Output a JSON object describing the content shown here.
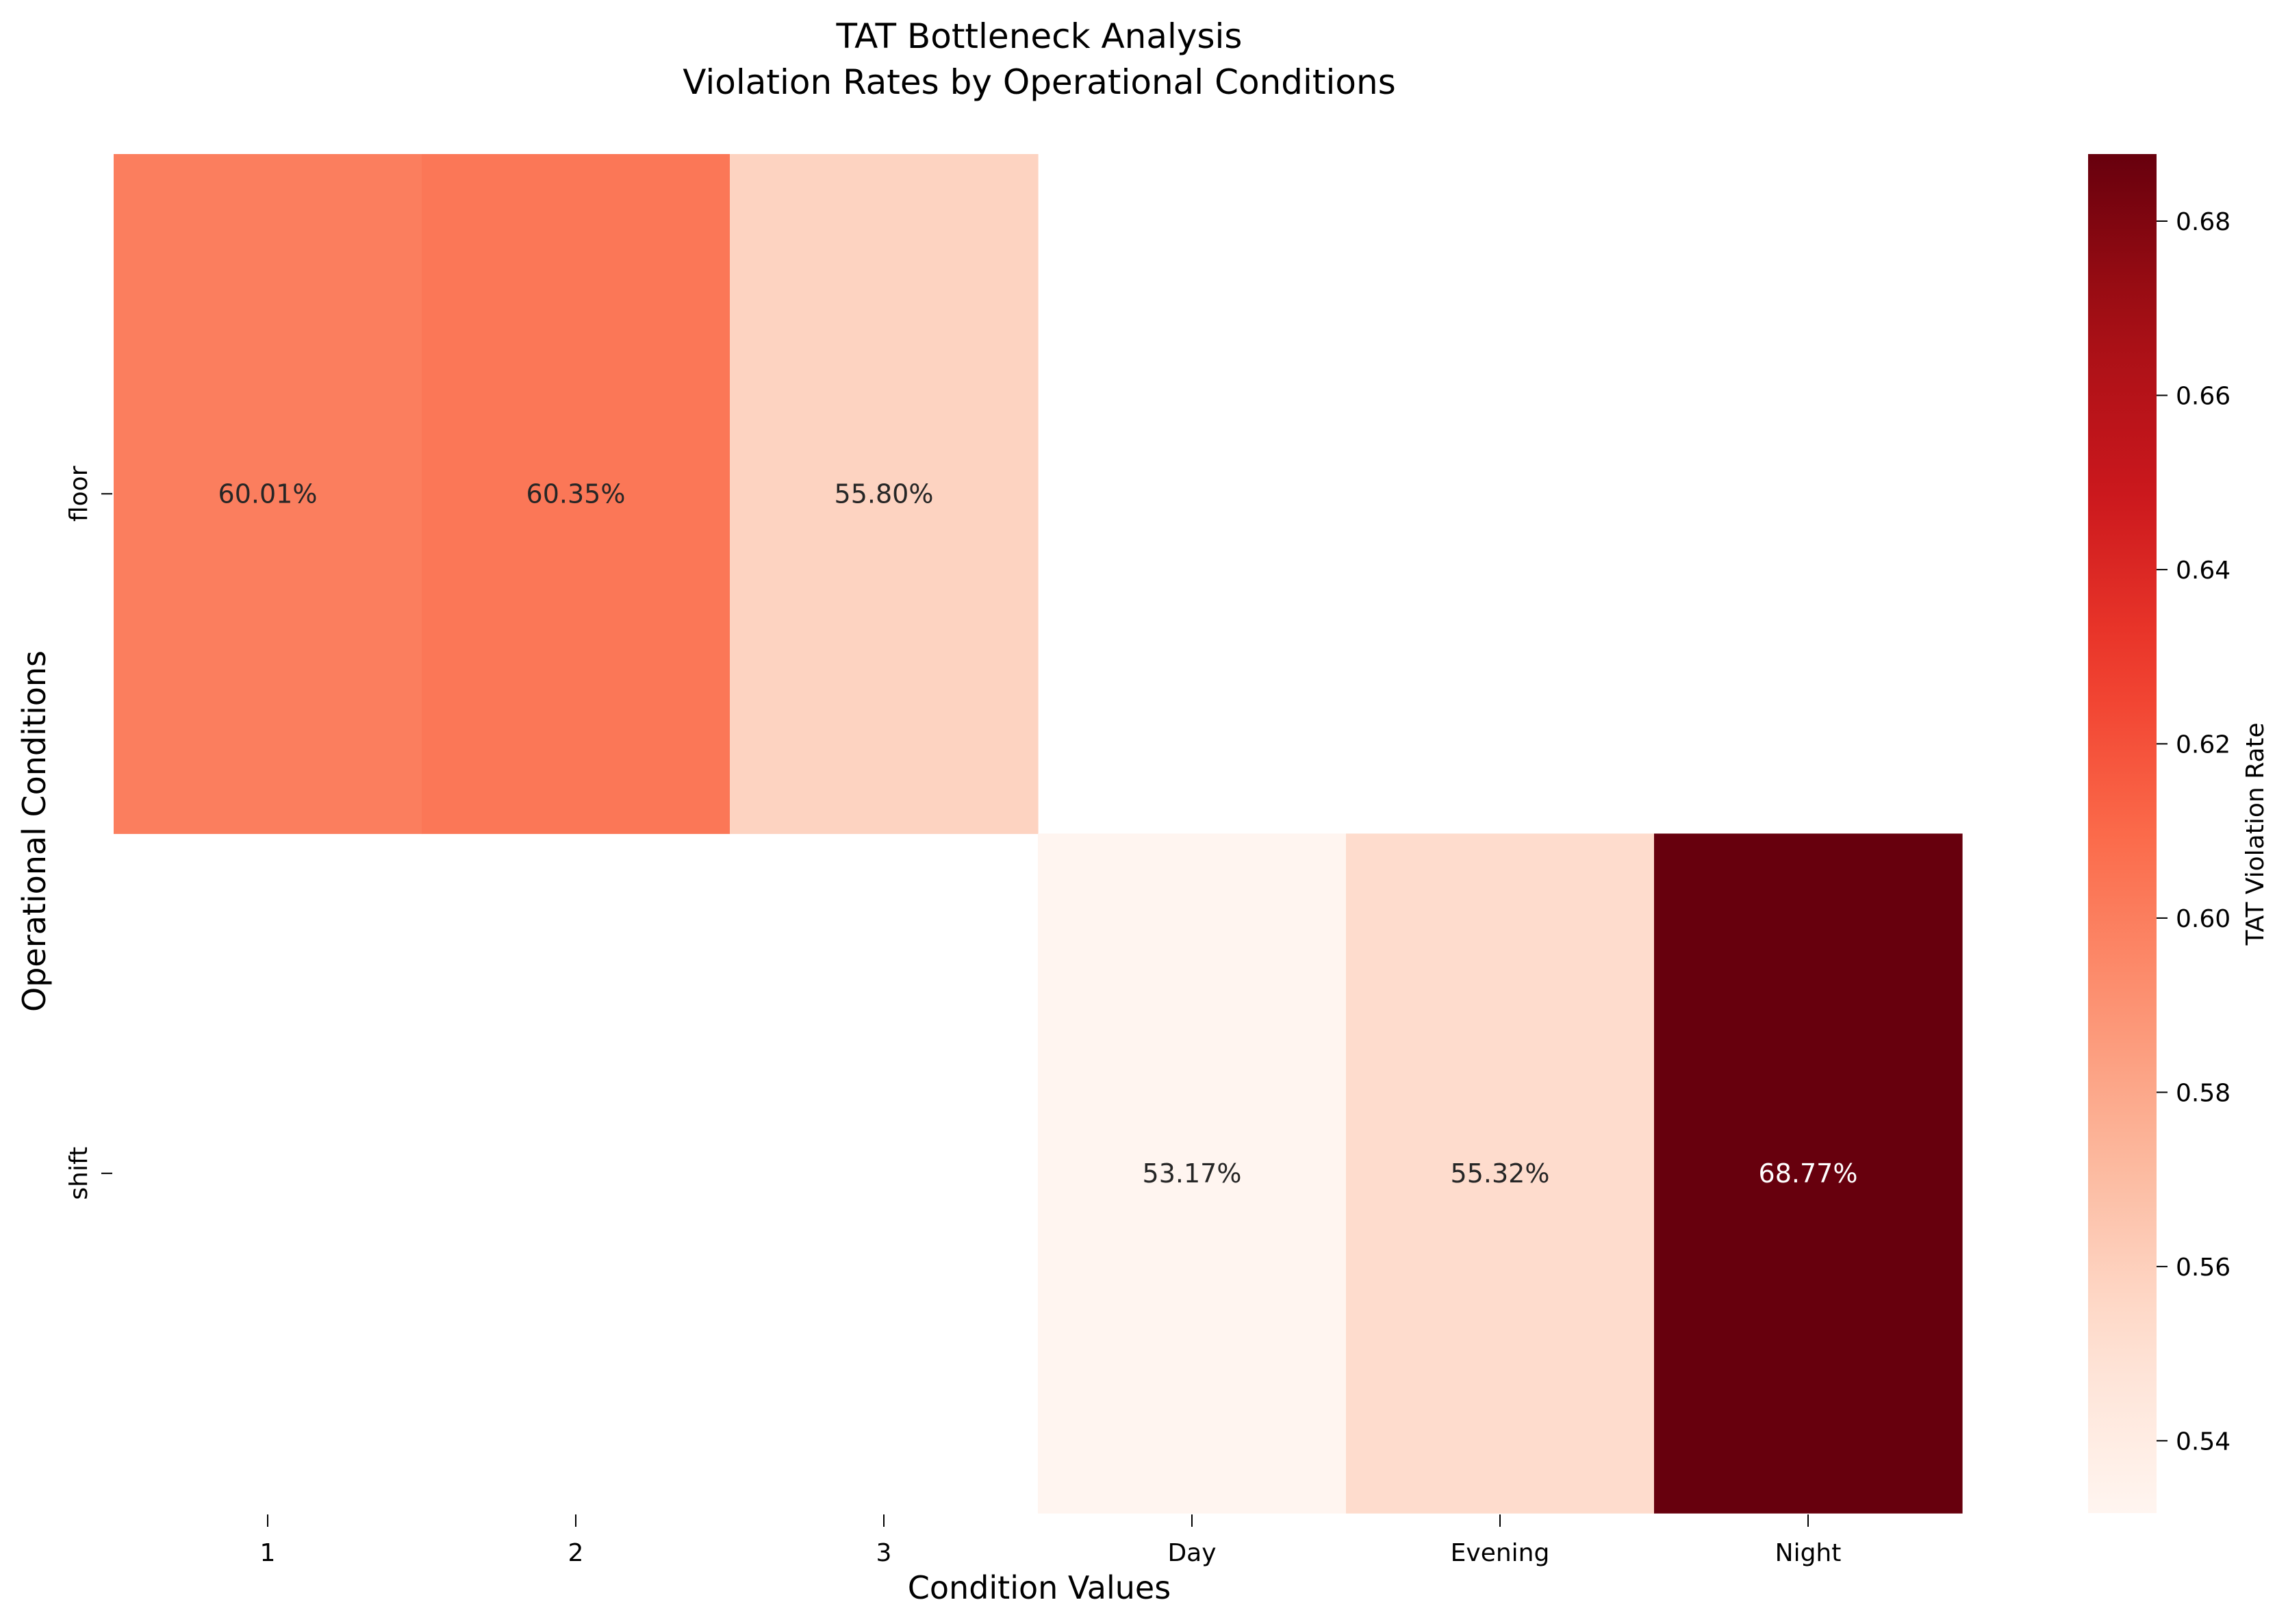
{
  "chart_data": {
    "type": "heatmap",
    "title": "TAT Bottleneck Analysis",
    "subtitle": "Violation Rates by Operational Conditions",
    "xlabel": "Condition Values",
    "ylabel": "Operational Conditions",
    "x_categories": [
      "1",
      "2",
      "3",
      "Day",
      "Evening",
      "Night"
    ],
    "y_categories": [
      "floor",
      "shift"
    ],
    "values": [
      [
        0.6001,
        0.6035,
        0.558,
        null,
        null,
        null
      ],
      [
        null,
        null,
        null,
        0.5317,
        0.5532,
        0.6877
      ]
    ],
    "cell_labels": [
      [
        "60.01%",
        "60.35%",
        "55.80%",
        "",
        "",
        ""
      ],
      [
        "",
        "",
        "",
        "53.17%",
        "55.32%",
        "68.77%"
      ]
    ],
    "colorbar": {
      "label": "TAT Violation Rate",
      "vmin": 0.5317,
      "vmax": 0.6877,
      "ticks": [
        "0.54",
        "0.56",
        "0.58",
        "0.60",
        "0.62",
        "0.64",
        "0.66",
        "0.68"
      ],
      "colormap": "Reds"
    }
  }
}
